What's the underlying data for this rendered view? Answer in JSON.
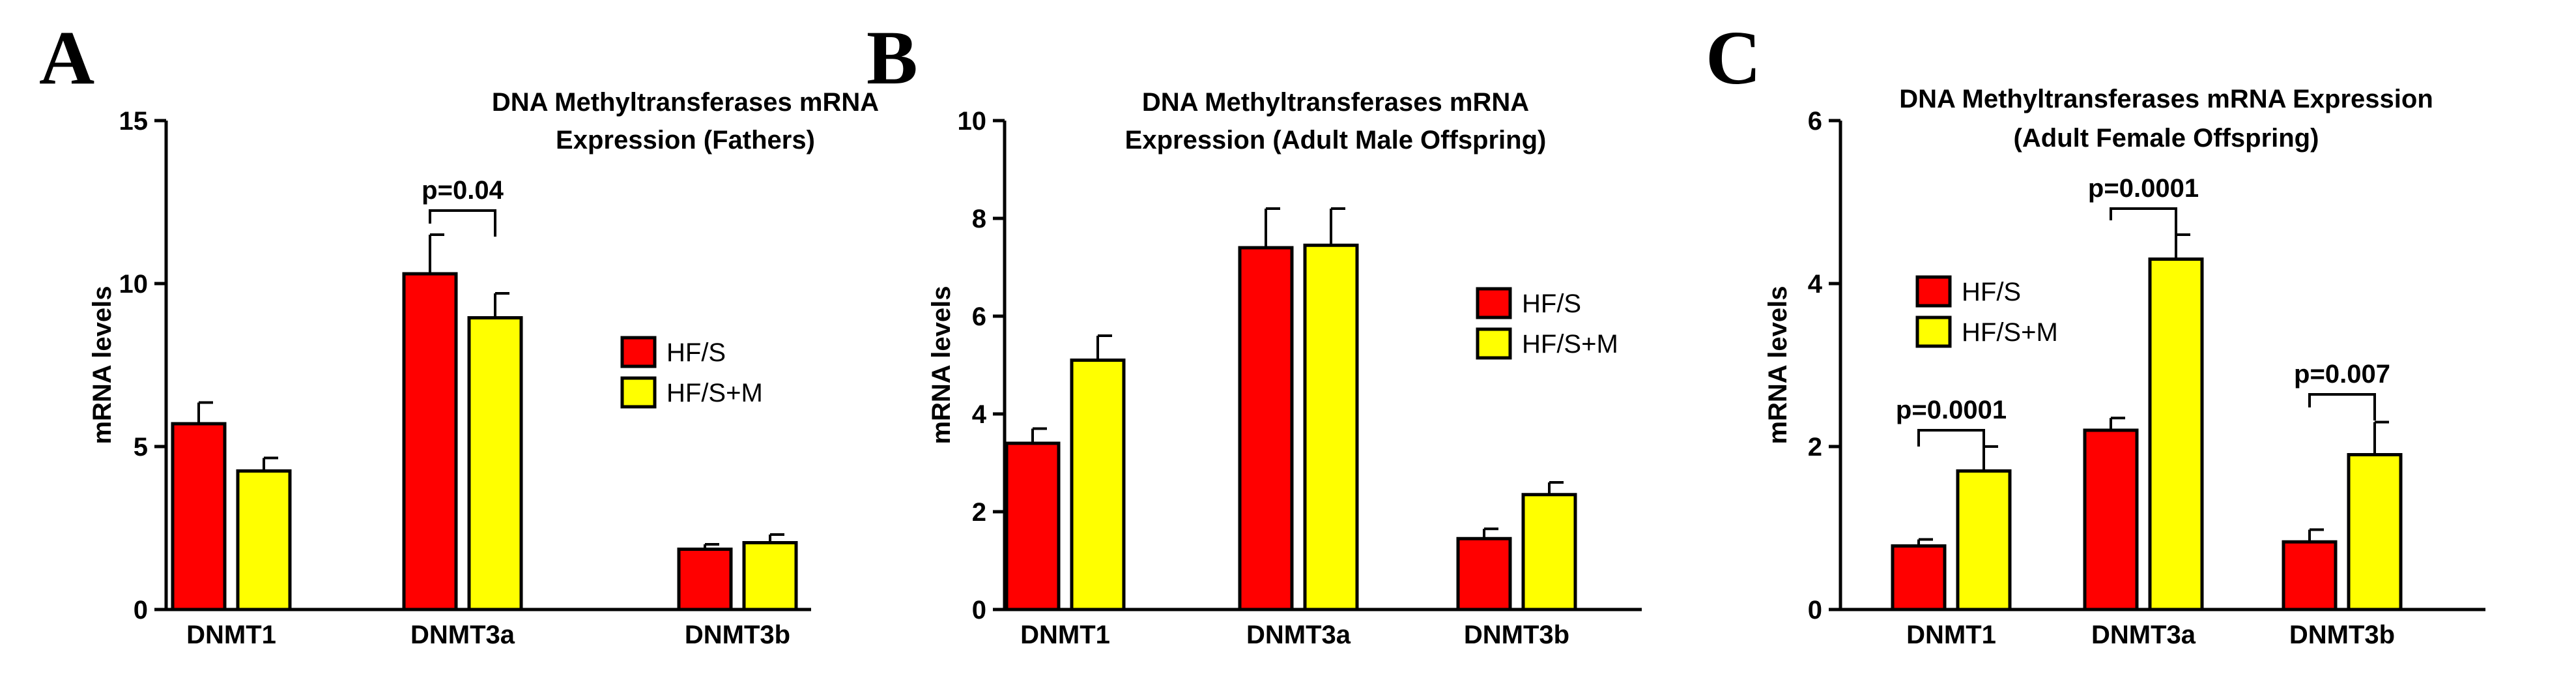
{
  "colors": {
    "hf_s": "#ff0000",
    "hf_s_m": "#ffff00",
    "axis": "#000000"
  },
  "legend_labels": [
    "HF/S",
    "HF/S+M"
  ],
  "chart_data": [
    {
      "panel": "A",
      "type": "bar",
      "title_lines": [
        "DNA Methyltransferases mRNA",
        "Expression (Fathers)"
      ],
      "xlabel": "",
      "ylabel": "mRNA levels",
      "ylim": [
        0,
        15
      ],
      "yticks": [
        "0",
        "5",
        "10",
        "15"
      ],
      "categories": [
        "DNMT1",
        "DNMT3a",
        "DNMT3b"
      ],
      "series": [
        {
          "name": "HF/S",
          "values": [
            5.7,
            10.3,
            1.85
          ],
          "errors": [
            0.65,
            1.2,
            0.15
          ]
        },
        {
          "name": "HF/S+M",
          "values": [
            4.25,
            8.95,
            2.05
          ],
          "errors": [
            0.4,
            0.75,
            0.25
          ]
        }
      ],
      "legend_placement": "right",
      "significance": [
        {
          "category": "DNMT3a",
          "label": "p=0.04"
        }
      ]
    },
    {
      "panel": "B",
      "type": "bar",
      "title_lines": [
        "DNA Methyltransferases mRNA",
        "Expression (Adult Male Offspring)"
      ],
      "xlabel": "",
      "ylabel": "mRNA levels",
      "ylim": [
        0,
        10
      ],
      "yticks": [
        "0",
        "2",
        "4",
        "6",
        "8",
        "10"
      ],
      "categories": [
        "DNMT1",
        "DNMT3a",
        "DNMT3b"
      ],
      "series": [
        {
          "name": "HF/S",
          "values": [
            3.4,
            7.4,
            1.45
          ],
          "errors": [
            0.3,
            0.8,
            0.2
          ]
        },
        {
          "name": "HF/S+M",
          "values": [
            5.1,
            7.45,
            2.35
          ],
          "errors": [
            0.5,
            0.75,
            0.25
          ]
        }
      ],
      "legend_placement": "right",
      "significance": []
    },
    {
      "panel": "C",
      "type": "bar",
      "title_lines": [
        "DNA Methyltransferases mRNA Expression",
        "(Adult Female Offspring)"
      ],
      "xlabel": "",
      "ylabel": "mRNA levels",
      "ylim": [
        0,
        6
      ],
      "yticks": [
        "0",
        "2",
        "4",
        "6"
      ],
      "categories": [
        "DNMT1",
        "DNMT3a",
        "DNMT3b"
      ],
      "series": [
        {
          "name": "HF/S",
          "values": [
            0.78,
            2.2,
            0.83
          ],
          "errors": [
            0.08,
            0.15,
            0.15
          ]
        },
        {
          "name": "HF/S+M",
          "values": [
            1.7,
            4.3,
            1.9
          ],
          "errors": [
            0.3,
            0.3,
            0.4
          ]
        }
      ],
      "legend_placement": "upper-left",
      "significance": [
        {
          "category": "DNMT1",
          "label": "p=0.0001"
        },
        {
          "category": "DNMT3a",
          "label": "p=0.0001"
        },
        {
          "category": "DNMT3b",
          "label": "p=0.007"
        }
      ]
    }
  ]
}
